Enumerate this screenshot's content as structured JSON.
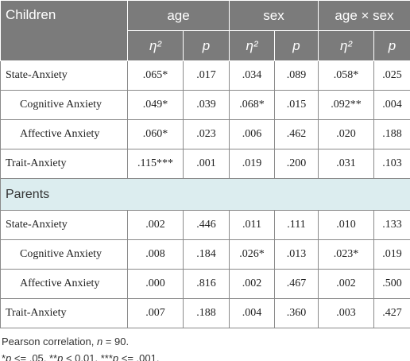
{
  "header": {
    "title": "Children",
    "groups": [
      "age",
      "sex",
      "age × sex"
    ],
    "subheaders": [
      "η²",
      "p",
      "η²",
      "p",
      "η²",
      "p"
    ]
  },
  "children_rows": [
    {
      "label": "State-Anxiety",
      "level": 0,
      "cells": [
        ".065*",
        ".017",
        ".034",
        ".089",
        ".058*",
        ".025"
      ]
    },
    {
      "label": "Cognitive Anxiety",
      "level": 1,
      "cells": [
        ".049*",
        ".039",
        ".068*",
        ".015",
        ".092**",
        ".004"
      ]
    },
    {
      "label": "Affective Anxiety",
      "level": 1,
      "cells": [
        ".060*",
        ".023",
        ".006",
        ".462",
        ".020",
        ".188"
      ]
    },
    {
      "label": "Trait-Anxiety",
      "level": 0,
      "cells": [
        ".115***",
        ".001",
        ".019",
        ".200",
        ".031",
        ".103"
      ]
    }
  ],
  "parents_title": "Parents",
  "parents_rows": [
    {
      "label": "State-Anxiety",
      "level": 0,
      "cells": [
        ".002",
        ".446",
        ".011",
        ".111",
        ".010",
        ".133"
      ]
    },
    {
      "label": "Cognitive Anxiety",
      "level": 1,
      "cells": [
        ".008",
        ".184",
        ".026*",
        ".013",
        ".023*",
        ".019"
      ]
    },
    {
      "label": "Affective Anxiety",
      "level": 1,
      "cells": [
        ".000",
        ".816",
        ".002",
        ".467",
        ".002",
        ".500"
      ]
    },
    {
      "label": "Trait-Anxiety",
      "level": 0,
      "cells": [
        ".007",
        ".188",
        ".004",
        ".360",
        ".003",
        ".427"
      ]
    }
  ],
  "notes": [
    [
      "Pearson correlation, ",
      "n",
      " = 90."
    ],
    [
      "*",
      "p",
      " <= .05, **",
      "p",
      " < 0.01, ***",
      "p",
      " <= .001."
    ]
  ]
}
